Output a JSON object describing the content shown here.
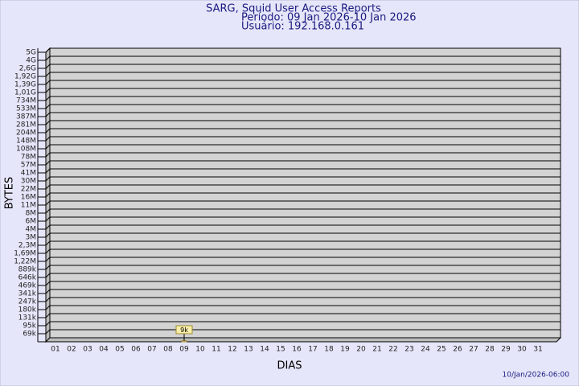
{
  "chart_data": {
    "type": "bar",
    "title": "SARG, Squid User Access Reports",
    "subtitle": "Período: 09 Jan 2026-10 Jan 2026",
    "user": "Usuário: 192.168.0.161",
    "y_label": "BYTES",
    "x_label": "DIAS",
    "footer": "10/Jan/2026-06:00",
    "categories": [
      "01",
      "02",
      "03",
      "04",
      "05",
      "06",
      "07",
      "08",
      "09",
      "10",
      "11",
      "12",
      "13",
      "14",
      "15",
      "16",
      "17",
      "18",
      "19",
      "20",
      "21",
      "22",
      "23",
      "24",
      "25",
      "26",
      "27",
      "28",
      "29",
      "30",
      "31"
    ],
    "values": [
      null,
      null,
      null,
      null,
      null,
      null,
      null,
      null,
      9000,
      null,
      null,
      null,
      null,
      null,
      null,
      null,
      null,
      null,
      null,
      null,
      null,
      null,
      null,
      null,
      null,
      null,
      null,
      null,
      null,
      null,
      null
    ],
    "value_labels": [
      null,
      null,
      null,
      null,
      null,
      null,
      null,
      null,
      "9k",
      null,
      null,
      null,
      null,
      null,
      null,
      null,
      null,
      null,
      null,
      null,
      null,
      null,
      null,
      null,
      null,
      null,
      null,
      null,
      null,
      null,
      null
    ],
    "color": "#f3e6a0",
    "ylim": [
      0,
      5000000000
    ],
    "yticks": [
      {
        "value": 69000,
        "label": "69k"
      },
      {
        "value": 95000,
        "label": "95k"
      },
      {
        "value": 131000,
        "label": "131k"
      },
      {
        "value": 180000,
        "label": "180k"
      },
      {
        "value": 247000,
        "label": "247k"
      },
      {
        "value": 341000,
        "label": "341k"
      },
      {
        "value": 469000,
        "label": "469k"
      },
      {
        "value": 646000,
        "label": "646k"
      },
      {
        "value": 889000,
        "label": "889k"
      },
      {
        "value": 1220000,
        "label": "1,22M"
      },
      {
        "value": 1690000,
        "label": "1,69M"
      },
      {
        "value": 2300000,
        "label": "2,3M"
      },
      {
        "value": 3000000,
        "label": "3M"
      },
      {
        "value": 4000000,
        "label": "4M"
      },
      {
        "value": 6000000,
        "label": "6M"
      },
      {
        "value": 8000000,
        "label": "8M"
      },
      {
        "value": 11000000,
        "label": "11M"
      },
      {
        "value": 16000000,
        "label": "16M"
      },
      {
        "value": 22000000,
        "label": "22M"
      },
      {
        "value": 30000000,
        "label": "30M"
      },
      {
        "value": 41000000,
        "label": "41M"
      },
      {
        "value": 57000000,
        "label": "57M"
      },
      {
        "value": 78000000,
        "label": "78M"
      },
      {
        "value": 108000000,
        "label": "108M"
      },
      {
        "value": 148000000,
        "label": "148M"
      },
      {
        "value": 204000000,
        "label": "204M"
      },
      {
        "value": 281000000,
        "label": "281M"
      },
      {
        "value": 387000000,
        "label": "387M"
      },
      {
        "value": 533000000,
        "label": "533M"
      },
      {
        "value": 734000000,
        "label": "734M"
      },
      {
        "value": 1010000000,
        "label": "1,01G"
      },
      {
        "value": 1390000000,
        "label": "1,39G"
      },
      {
        "value": 1920000000,
        "label": "1,92G"
      },
      {
        "value": 2600000000,
        "label": "2,6G"
      },
      {
        "value": 4000000000,
        "label": "4G"
      },
      {
        "value": 5000000000,
        "label": "5G"
      }
    ],
    "grid": true
  }
}
